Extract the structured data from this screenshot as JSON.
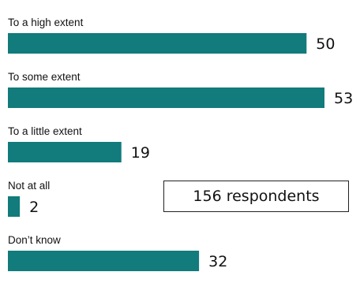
{
  "chart_data": {
    "type": "bar",
    "orientation": "horizontal",
    "categories": [
      "To a high extent",
      "To some extent",
      "To a little extent",
      "Not at all",
      "Don’t know"
    ],
    "values": [
      50,
      53,
      19,
      2,
      32
    ],
    "xlim": [
      0,
      53
    ],
    "grid": false,
    "legend": "none",
    "bar_color": "#127b7b",
    "title": "",
    "xlabel": "",
    "ylabel": ""
  },
  "annotation": {
    "text": "156 respondents"
  }
}
